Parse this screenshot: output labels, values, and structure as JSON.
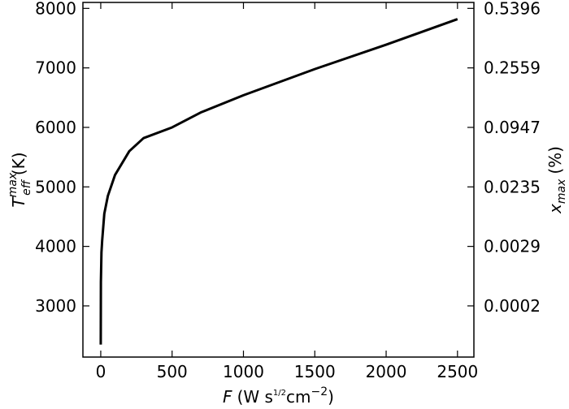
{
  "chart_data": {
    "type": "line",
    "xlabel": {
      "symbol": "F",
      "open": "(W s",
      "exponent": "1/2",
      "unit": "cm",
      "unit_exponent": "−2",
      "close": ")"
    },
    "ylabel": {
      "symbol": "T",
      "sub": "eff",
      "sup": "max",
      "unit": "(K)"
    },
    "y2label": {
      "symbol": "x",
      "sub": "max",
      "unit": "(%)"
    },
    "x": [
      0,
      1,
      5,
      10,
      25,
      50,
      100,
      200,
      300,
      500,
      700,
      1000,
      1500,
      2000,
      2500
    ],
    "series": [
      {
        "color": "#000000",
        "values": [
          2350,
          3400,
          3900,
          4100,
          4550,
          4850,
          5200,
          5600,
          5820,
          6000,
          6250,
          6540,
          6980,
          7390,
          7820
        ]
      }
    ],
    "xlim": [
      -125,
      2615
    ],
    "xticks": [
      0,
      500,
      1000,
      1500,
      2000,
      2500
    ],
    "ylim": [
      2140,
      8100
    ],
    "yticks": [
      3000,
      4000,
      5000,
      6000,
      7000,
      8000
    ],
    "y2_tick_labels": [
      "0.0002",
      "0.0029",
      "0.0235",
      "0.0947",
      "0.2559",
      "0.5396"
    ]
  }
}
